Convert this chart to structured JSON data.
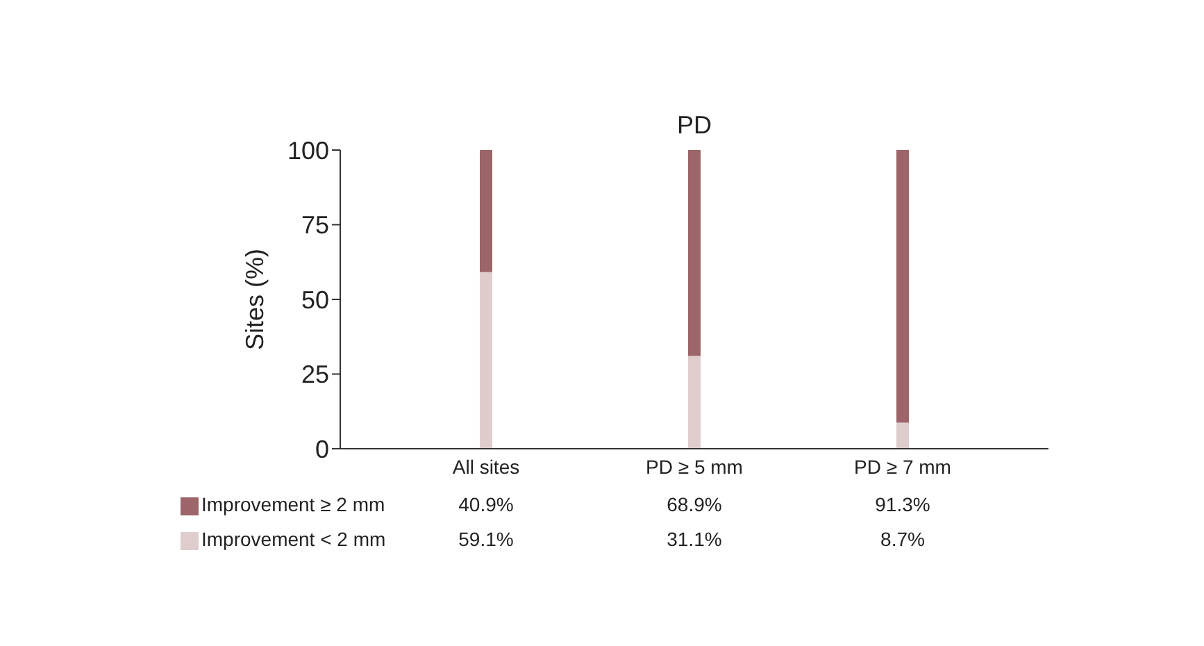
{
  "chart_data": {
    "type": "bar",
    "title": "PD",
    "ylabel": "Sites (%)",
    "stacked": true,
    "categories": [
      "All sites",
      "PD ≥ 5 mm",
      "PD ≥ 7 mm"
    ],
    "series": [
      {
        "name": "Improvement < 2 mm",
        "color": "#dfcdcd",
        "values": [
          59.1,
          31.1,
          8.7
        ],
        "value_labels": [
          "59.1%",
          "31.1%",
          "8.7%"
        ]
      },
      {
        "name": "Improvement ≥ 2 mm",
        "color": "#9c656a",
        "values": [
          40.9,
          68.9,
          91.3
        ],
        "value_labels": [
          "40.9%",
          "68.9%",
          "91.3%"
        ]
      }
    ],
    "ylim": [
      0,
      100
    ],
    "yticks": [
      0,
      25,
      50,
      75,
      100
    ],
    "grid": false,
    "legend": "bottom left"
  }
}
